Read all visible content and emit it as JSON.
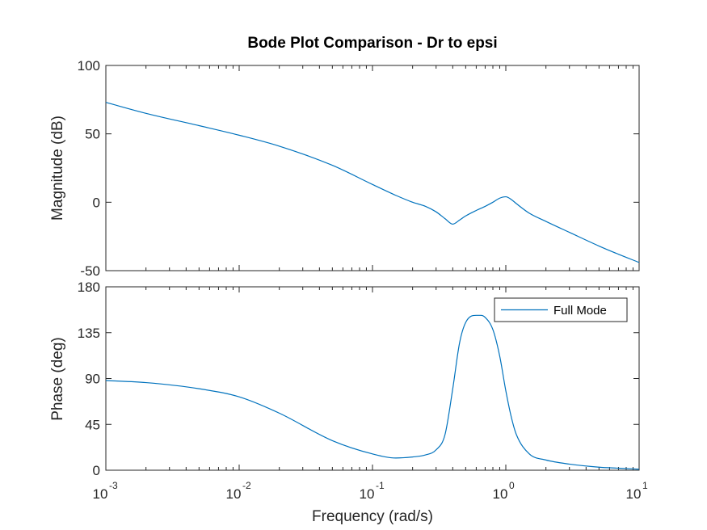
{
  "chart_data": [
    {
      "type": "line",
      "title": "Bode Plot Comparison - Dr to epsi",
      "xlabel": "",
      "ylabel": "Magnitude (dB)",
      "xscale": "log",
      "xlim": [
        0.001,
        10
      ],
      "ylim": [
        -50,
        100
      ],
      "yticks": [
        -50,
        0,
        50,
        100
      ],
      "grid": false,
      "series": [
        {
          "name": "Full Mode",
          "color": "#0072BD",
          "x": [
            0.001,
            0.002,
            0.005,
            0.01,
            0.02,
            0.05,
            0.1,
            0.15,
            0.2,
            0.25,
            0.3,
            0.35,
            0.4,
            0.45,
            0.5,
            0.6,
            0.7,
            0.8,
            0.9,
            1.0,
            1.1,
            1.2,
            1.5,
            2,
            3,
            5,
            7,
            10
          ],
          "y": [
            73,
            65,
            56,
            49,
            41,
            27,
            13,
            5,
            0,
            -3,
            -7,
            -12,
            -16,
            -13,
            -10,
            -6,
            -3,
            0,
            3,
            4,
            2,
            -1,
            -8,
            -14,
            -22,
            -32,
            -38,
            -44
          ]
        }
      ]
    },
    {
      "type": "line",
      "title": "",
      "xlabel": "Frequency  (rad/s)",
      "ylabel": "Phase (deg)",
      "xscale": "log",
      "xlim": [
        0.001,
        10
      ],
      "ylim": [
        0,
        180
      ],
      "yticks": [
        0,
        45,
        90,
        135,
        180
      ],
      "xticks": [
        0.001,
        0.01,
        0.1,
        1,
        10
      ],
      "grid": false,
      "legend": "top-right",
      "series": [
        {
          "name": "Full Mode",
          "color": "#0072BD",
          "x": [
            0.001,
            0.002,
            0.005,
            0.01,
            0.02,
            0.05,
            0.1,
            0.15,
            0.2,
            0.25,
            0.3,
            0.35,
            0.4,
            0.45,
            0.5,
            0.6,
            0.65,
            0.7,
            0.8,
            0.9,
            1.0,
            1.1,
            1.2,
            1.5,
            2,
            3,
            5,
            7,
            10
          ],
          "y": [
            88,
            86,
            80,
            72,
            56,
            29,
            16,
            12,
            13,
            15,
            20,
            35,
            80,
            125,
            145,
            152,
            152,
            150,
            138,
            112,
            78,
            52,
            35,
            16,
            10,
            6,
            3,
            2,
            1
          ]
        }
      ]
    }
  ],
  "tick_labels": {
    "x": [
      {
        "base": "10",
        "exp": "-3"
      },
      {
        "base": "10",
        "exp": "-2"
      },
      {
        "base": "10",
        "exp": "-1"
      },
      {
        "base": "10",
        "exp": "0"
      },
      {
        "base": "10",
        "exp": "1"
      }
    ],
    "mag_y": [
      "-50",
      "0",
      "50",
      "100"
    ],
    "phase_y": [
      "0",
      "45",
      "90",
      "135",
      "180"
    ]
  }
}
